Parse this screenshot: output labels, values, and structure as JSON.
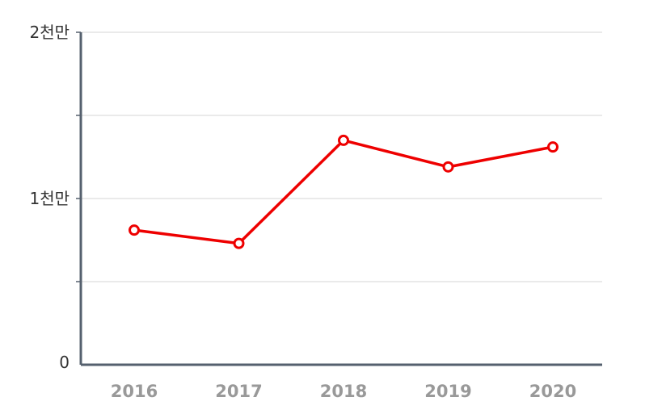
{
  "chart_data": {
    "type": "line",
    "title": "",
    "xlabel": "",
    "ylabel": "",
    "categories": [
      "2016",
      "2017",
      "2018",
      "2019",
      "2020"
    ],
    "series": [
      {
        "values": [
          8100000,
          7300000,
          13500000,
          11900000,
          13100000
        ],
        "color": "#ee0000"
      }
    ],
    "ylim": [
      0,
      20000000
    ],
    "y_gridlines": [
      0,
      5000000,
      10000000,
      15000000,
      20000000
    ],
    "y_tick_labels": [
      {
        "value": 0,
        "label": "0"
      },
      {
        "value": 10000000,
        "label": "1천만"
      },
      {
        "value": 20000000,
        "label": "2천만"
      }
    ],
    "grid": true,
    "legend": "none",
    "axis_color": "#55606e",
    "grid_color": "#dddddd",
    "marker": "hollow-circle"
  }
}
